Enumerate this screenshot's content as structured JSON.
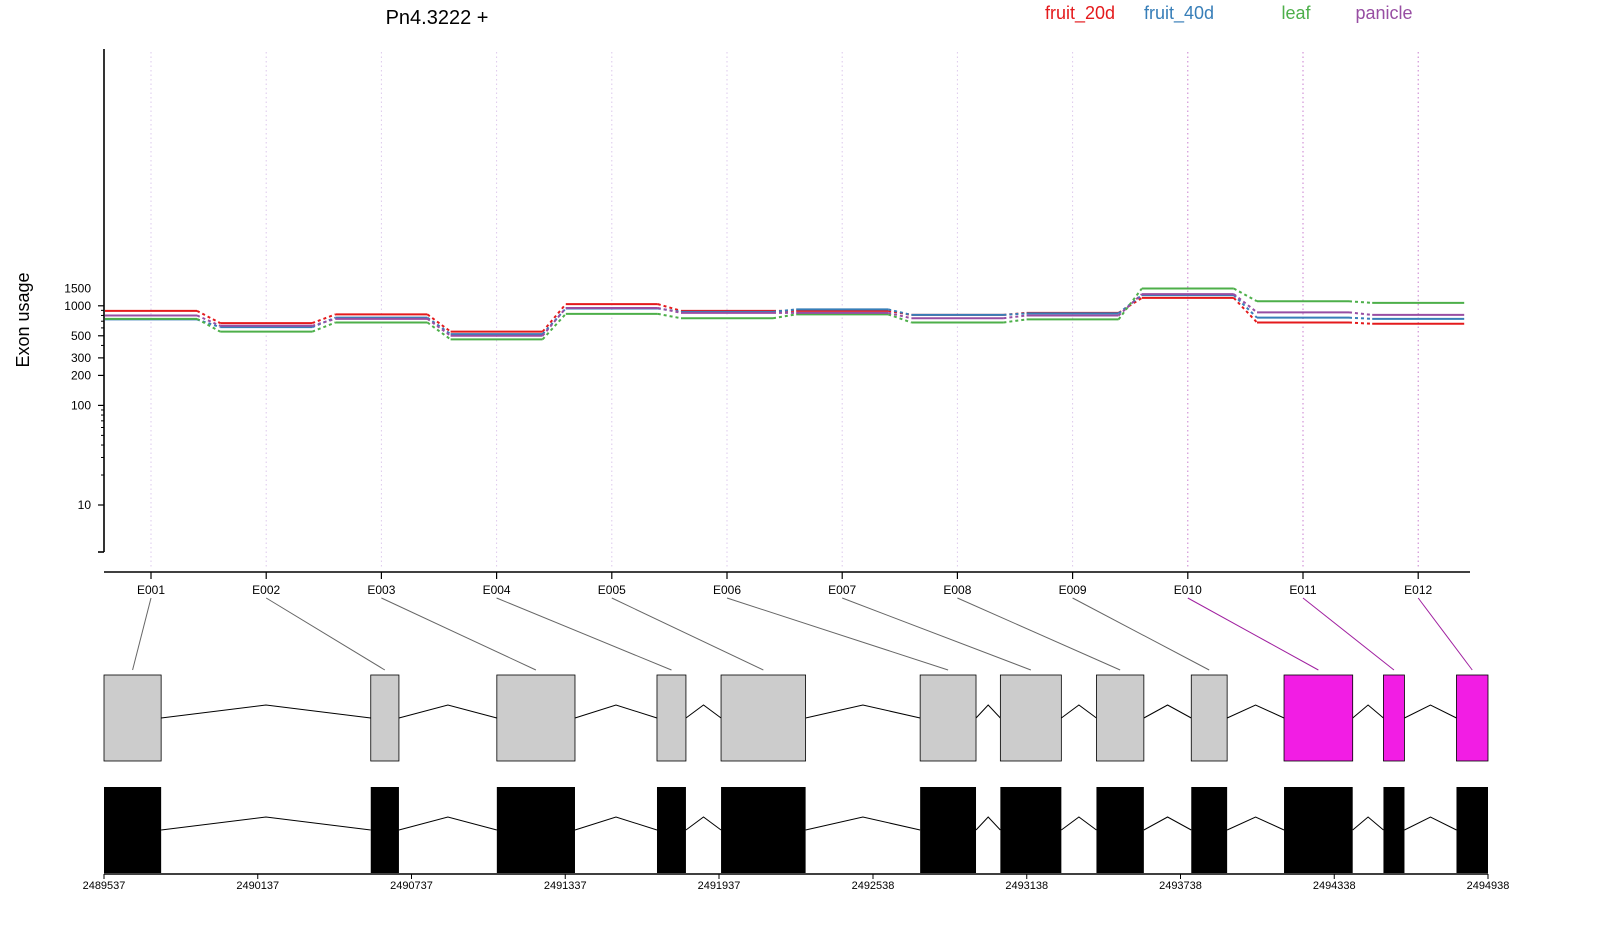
{
  "chart_data": {
    "type": "line",
    "title": "Pn4.3222 +",
    "ylabel": "Exon usage",
    "xlabel": "",
    "y_scale": "log",
    "ylim": [
      5,
      1700
    ],
    "y_ticks": [
      10,
      100,
      200,
      300,
      500,
      1000,
      1500
    ],
    "grid": "dotted vertical line at each exon",
    "legend_position": "top-right",
    "categories": [
      "E001",
      "E002",
      "E003",
      "E004",
      "E005",
      "E006",
      "E007",
      "E008",
      "E009",
      "E010",
      "E011",
      "E012"
    ],
    "series": [
      {
        "name": "fruit_20d",
        "color": "#e41a1c",
        "values": [
          890,
          670,
          820,
          550,
          1040,
          890,
          890,
          810,
          850,
          1200,
          680,
          660
        ]
      },
      {
        "name": "fruit_40d",
        "color": "#377eb8",
        "values": [
          730,
          610,
          760,
          520,
          940,
          870,
          920,
          810,
          840,
          1280,
          760,
          740
        ]
      },
      {
        "name": "leaf",
        "color": "#4daf4a",
        "values": [
          740,
          550,
          680,
          460,
          830,
          750,
          820,
          680,
          730,
          1490,
          1110,
          1070
        ]
      },
      {
        "name": "panicle",
        "color": "#984ea3",
        "values": [
          800,
          630,
          740,
          500,
          950,
          850,
          850,
          750,
          800,
          1310,
          860,
          810
        ]
      }
    ],
    "exon_highlight_color": "#f21de4",
    "highlighted_exons": [
      "E010",
      "E011",
      "E012"
    ],
    "gene_model": {
      "coordinates": [
        "2489537",
        "2490137",
        "2490737",
        "2491337",
        "2491937",
        "2492538",
        "2493138",
        "2493738",
        "2494338",
        "2494938"
      ],
      "exons": [
        {
          "id": "E001",
          "start": 2489537,
          "end": 2489760
        },
        {
          "id": "E002",
          "start": 2490578,
          "end": 2490688
        },
        {
          "id": "E003",
          "start": 2491070,
          "end": 2491375
        },
        {
          "id": "E004",
          "start": 2491695,
          "end": 2491808
        },
        {
          "id": "E005",
          "start": 2491945,
          "end": 2492275
        },
        {
          "id": "E006",
          "start": 2492722,
          "end": 2492940
        },
        {
          "id": "E007",
          "start": 2493035,
          "end": 2493273
        },
        {
          "id": "E008",
          "start": 2493410,
          "end": 2493595
        },
        {
          "id": "E009",
          "start": 2493780,
          "end": 2493920
        },
        {
          "id": "E010",
          "start": 2494142,
          "end": 2494410
        },
        {
          "id": "E011",
          "start": 2494530,
          "end": 2494612
        },
        {
          "id": "E012",
          "start": 2494815,
          "end": 2494938
        }
      ]
    }
  }
}
